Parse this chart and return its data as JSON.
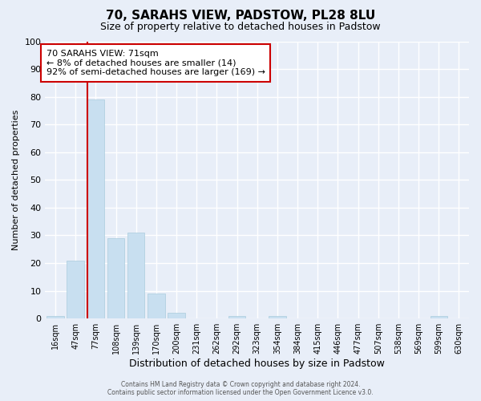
{
  "title": "70, SARAHS VIEW, PADSTOW, PL28 8LU",
  "subtitle": "Size of property relative to detached houses in Padstow",
  "xlabel": "Distribution of detached houses by size in Padstow",
  "ylabel": "Number of detached properties",
  "bar_labels": [
    "16sqm",
    "47sqm",
    "77sqm",
    "108sqm",
    "139sqm",
    "170sqm",
    "200sqm",
    "231sqm",
    "262sqm",
    "292sqm",
    "323sqm",
    "354sqm",
    "384sqm",
    "415sqm",
    "446sqm",
    "477sqm",
    "507sqm",
    "538sqm",
    "569sqm",
    "599sqm",
    "630sqm"
  ],
  "bar_values": [
    1,
    21,
    79,
    29,
    31,
    9,
    2,
    0,
    0,
    1,
    0,
    1,
    0,
    0,
    0,
    0,
    0,
    0,
    0,
    1,
    0
  ],
  "bar_color": "#c8dff0",
  "annotation_box_text": "70 SARAHS VIEW: 71sqm\n← 8% of detached houses are smaller (14)\n92% of semi-detached houses are larger (169) →",
  "annotation_box_color": "#ffffff",
  "annotation_box_edgecolor": "#cc0000",
  "ylim": [
    0,
    100
  ],
  "yticks": [
    0,
    10,
    20,
    30,
    40,
    50,
    60,
    70,
    80,
    90,
    100
  ],
  "footer_line1": "Contains HM Land Registry data © Crown copyright and database right 2024.",
  "footer_line2": "Contains public sector information licensed under the Open Government Licence v3.0.",
  "bg_color": "#e8eef8",
  "plot_bg_color": "#e8eef8",
  "grid_color": "#ffffff",
  "highlight_line_color": "#cc0000",
  "title_fontsize": 11,
  "subtitle_fontsize": 9,
  "ylabel_fontsize": 8,
  "xlabel_fontsize": 9
}
